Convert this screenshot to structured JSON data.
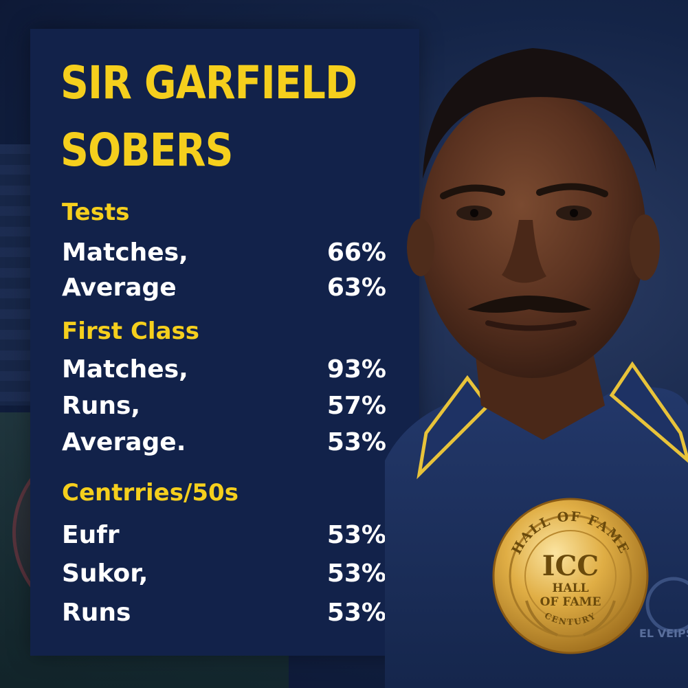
{
  "title": {
    "line1": "SIR GARFIELD",
    "line2": "SOBERS"
  },
  "sections": [
    {
      "heading": "Tests",
      "rows": [
        {
          "label": "Matches,",
          "value": "66%"
        },
        {
          "label": "Average",
          "value": "63%"
        }
      ]
    },
    {
      "heading": "First Class",
      "rows": [
        {
          "label": "Matches,",
          "value": "93%"
        },
        {
          "label": "Runs,",
          "value": "57%"
        },
        {
          "label": "Average.",
          "value": "53%"
        }
      ]
    },
    {
      "heading": "Centrries/50s",
      "rows": [
        {
          "label": "Eufr",
          "value": "53%"
        },
        {
          "label": "Sukor,",
          "value": "53%"
        },
        {
          "label": "Runs",
          "value": "53%"
        }
      ]
    }
  ],
  "medal": {
    "ring_top": "HALL OF FAME",
    "ring_bottom": "CENTURY",
    "center_main": "ICC",
    "center_line1": "HALL",
    "center_line2": "OF FAME"
  },
  "shirt_crest": "EL VEIPS",
  "colors": {
    "panel": "#12224a",
    "accent_yellow": "#f5cf1d",
    "text_white": "#ffffff",
    "medal_gold": "#d9a93a",
    "shirt_navy": "#1c2f5c"
  }
}
